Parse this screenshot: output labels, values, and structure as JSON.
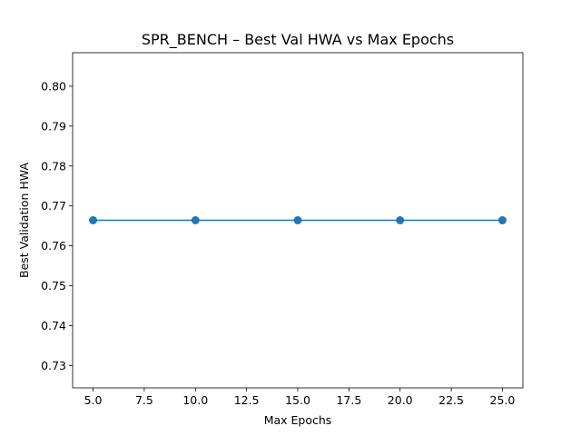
{
  "chart_data": {
    "type": "line",
    "title": "SPR_BENCH – Best Val HWA vs Max Epochs",
    "xlabel": "Max Epochs",
    "ylabel": "Best Validation HWA",
    "x": [
      5,
      10,
      15,
      20,
      25
    ],
    "series": [
      {
        "values": [
          0.7664,
          0.7664,
          0.7664,
          0.7664,
          0.7664
        ],
        "color": "#1f77b4"
      }
    ],
    "xlim": [
      4.0,
      26.0
    ],
    "ylim": [
      0.7244,
      0.8084
    ],
    "xticks": [
      5.0,
      7.5,
      10.0,
      12.5,
      15.0,
      17.5,
      20.0,
      22.5,
      25.0
    ],
    "xtick_labels": [
      "5.0",
      "7.5",
      "10.0",
      "12.5",
      "15.0",
      "17.5",
      "20.0",
      "22.5",
      "25.0"
    ],
    "yticks": [
      0.73,
      0.74,
      0.75,
      0.76,
      0.77,
      0.78,
      0.79,
      0.8
    ],
    "ytick_labels": [
      "0.73",
      "0.74",
      "0.75",
      "0.76",
      "0.77",
      "0.78",
      "0.79",
      "0.80"
    ],
    "grid": false,
    "legend": false
  }
}
